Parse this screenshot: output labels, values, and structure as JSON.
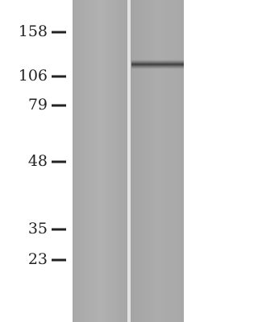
{
  "markers": [
    "158",
    "106",
    "79",
    "48",
    "35",
    "23"
  ]
}
